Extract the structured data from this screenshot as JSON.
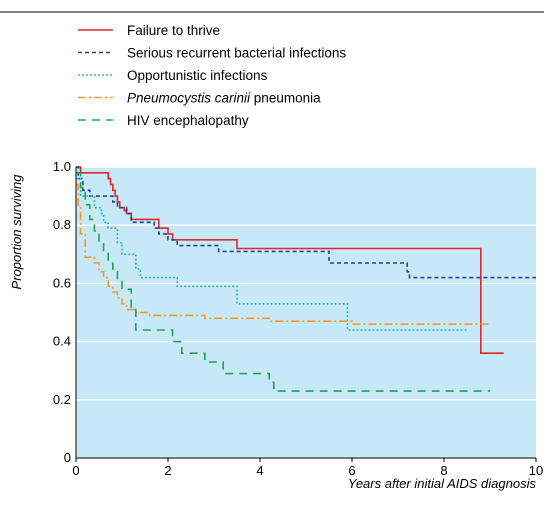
{
  "chart_data": {
    "type": "line",
    "step": true,
    "xlabel": "Years after initial AIDS diagnosis",
    "ylabel": "Proportion surviving",
    "xlim": [
      0,
      10
    ],
    "ylim": [
      0,
      1.0
    ],
    "xticks": [
      "0",
      "2",
      "4",
      "6",
      "8",
      "10"
    ],
    "yticks": [
      "0",
      "0.2",
      "0.4",
      "0.6",
      "0.8",
      "1.0"
    ],
    "grid": "horizontal",
    "plot_background": "#c6e8f7",
    "legend_placement": "top-left, above plot",
    "series": [
      {
        "name": "Failure to thrive",
        "legend_italic": "",
        "legend_rest": "Failure to thrive",
        "color": "#e3262c",
        "dash": "",
        "x": [
          0,
          0.1,
          0.7,
          0.75,
          0.8,
          0.85,
          0.9,
          0.95,
          1.05,
          1.1,
          1.2,
          1.8,
          2.0,
          2.1,
          3.5,
          8.8,
          9.3
        ],
        "y": [
          1.0,
          0.98,
          0.96,
          0.94,
          0.92,
          0.9,
          0.88,
          0.86,
          0.85,
          0.84,
          0.82,
          0.79,
          0.77,
          0.75,
          0.72,
          0.36,
          0.36
        ]
      },
      {
        "name": "Serious recurrent bacterial infections",
        "legend_italic": "",
        "legend_rest": "Serious recurrent bacterial infections",
        "color": "#2c3e8c",
        "dash": "4,3",
        "x": [
          0,
          0.05,
          0.15,
          0.3,
          0.8,
          0.9,
          1.1,
          1.2,
          1.7,
          1.8,
          2.0,
          2.2,
          3.1,
          5.5,
          7.2,
          7.25,
          10.0
        ],
        "y": [
          1.0,
          0.96,
          0.92,
          0.9,
          0.88,
          0.86,
          0.84,
          0.81,
          0.79,
          0.77,
          0.75,
          0.73,
          0.71,
          0.67,
          0.64,
          0.62,
          0.62
        ]
      },
      {
        "name": "Opportunistic infections",
        "legend_italic": "",
        "legend_rest": "Opportunistic infections",
        "color": "#1fb3bd",
        "dash": "1.8,2.2",
        "x": [
          0,
          0.1,
          0.4,
          0.55,
          0.6,
          0.7,
          0.9,
          1.0,
          1.3,
          1.4,
          2.2,
          3.5,
          5.9,
          8.5
        ],
        "y": [
          0.96,
          0.9,
          0.86,
          0.84,
          0.81,
          0.79,
          0.74,
          0.7,
          0.65,
          0.62,
          0.59,
          0.53,
          0.44,
          0.44
        ]
      },
      {
        "name": "Pneumocystis carinii pneumonia",
        "legend_italic": "Pneumocystis carinii",
        "legend_rest": " pneumonia",
        "color": "#f09a2e",
        "dash": "8,3,2,3",
        "x": [
          0,
          0.05,
          0.1,
          0.2,
          0.4,
          0.5,
          0.6,
          0.7,
          0.8,
          0.9,
          1.0,
          1.1,
          1.3,
          1.6,
          2.8,
          4.2,
          6.0,
          9.0
        ],
        "y": [
          0.94,
          0.86,
          0.77,
          0.69,
          0.67,
          0.64,
          0.62,
          0.59,
          0.57,
          0.55,
          0.53,
          0.51,
          0.5,
          0.49,
          0.48,
          0.47,
          0.46,
          0.46
        ]
      },
      {
        "name": "HIV encephalopathy",
        "legend_italic": "",
        "legend_rest": "HIV encephalopathy",
        "color": "#1ea54e",
        "dash": "8,6",
        "x": [
          0,
          0.1,
          0.2,
          0.3,
          0.4,
          0.5,
          0.6,
          0.7,
          0.8,
          0.9,
          1.0,
          1.2,
          1.3,
          1.5,
          2.1,
          2.3,
          2.8,
          3.2,
          4.2,
          4.3,
          9.0
        ],
        "y": [
          0.98,
          0.93,
          0.87,
          0.82,
          0.78,
          0.74,
          0.71,
          0.67,
          0.64,
          0.61,
          0.58,
          0.51,
          0.44,
          0.44,
          0.4,
          0.36,
          0.33,
          0.29,
          0.26,
          0.23,
          0.23
        ]
      }
    ]
  }
}
